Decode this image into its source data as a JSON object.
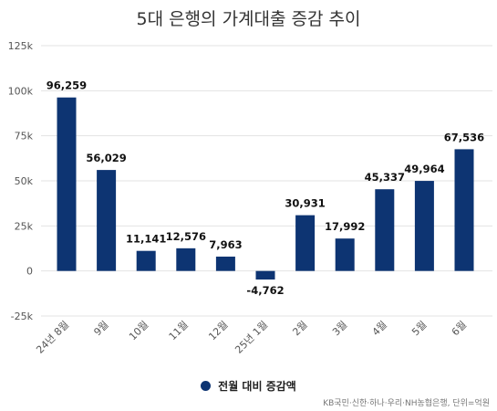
{
  "chart_data": {
    "type": "bar",
    "title": "5대 은행의 가계대출 증감 추이",
    "categories": [
      "24년 8월",
      "9월",
      "10월",
      "11월",
      "12월",
      "25년 1월",
      "2월",
      "3월",
      "4월",
      "5월",
      "6월"
    ],
    "series": [
      {
        "name": "전월 대비 증감액",
        "values": [
          96259,
          56029,
          11141,
          12576,
          7963,
          -4762,
          30931,
          17992,
          45337,
          49964,
          67536
        ],
        "data_labels": [
          "96,259",
          "56,029",
          "11,141",
          "12,576",
          "7,963",
          "-4,762",
          "30,931",
          "17,992",
          "45,337",
          "49,964",
          "67,536"
        ],
        "color": "#0d3472"
      }
    ],
    "yticks": [
      -25000,
      0,
      25000,
      50000,
      75000,
      100000,
      125000
    ],
    "ytick_labels": [
      "-25k",
      "0",
      "25k",
      "50k",
      "75k",
      "100k",
      "125k"
    ],
    "ylim": [
      -25000,
      125000
    ],
    "grid": true,
    "legend_position": "bottom-center",
    "source": "KB국민·신한·하나·우리·NH농협은행, 단위=억원"
  }
}
